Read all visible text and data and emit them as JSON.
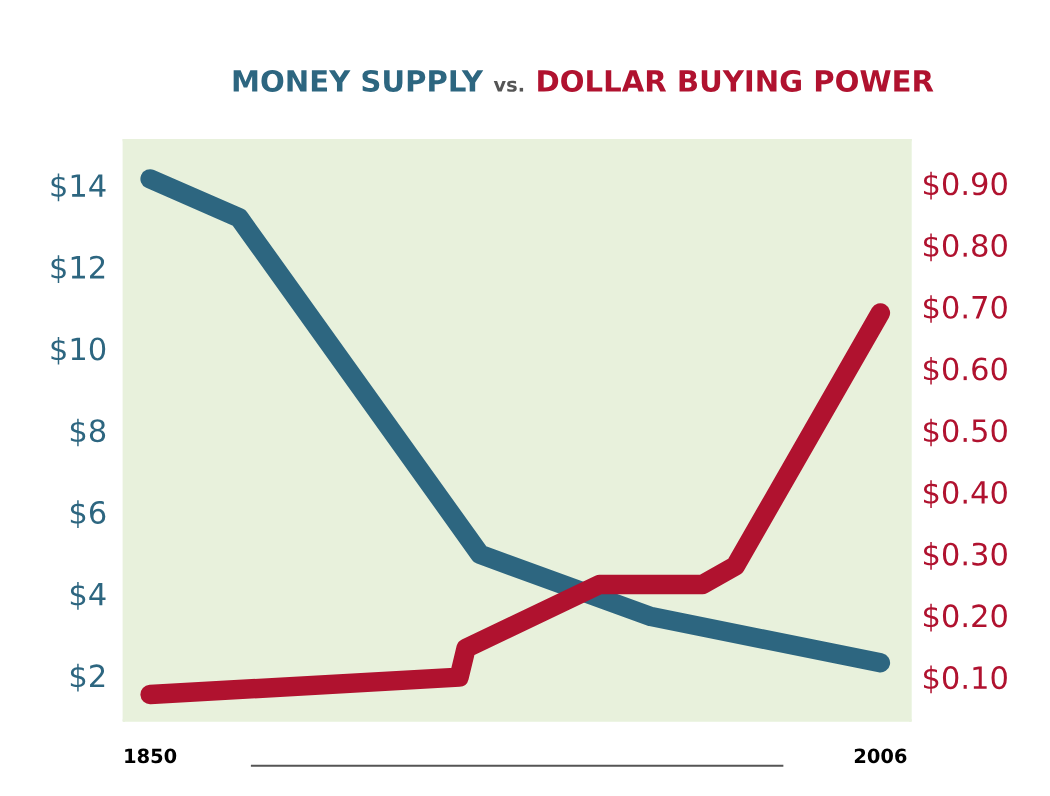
{
  "chart_data": {
    "type": "line",
    "title": "vs.",
    "series": [
      {
        "name": "MONEY SUPPLY",
        "color": "#2d6680",
        "axis": "y",
        "x": [
          1850,
          1869,
          1920.5,
          1957,
          2006
        ],
        "values": [
          14.15,
          13.2,
          4.96,
          3.44,
          2.31
        ]
      },
      {
        "name": "DOLLAR BUYING POWER",
        "color": "#b0122f",
        "axis": "y2",
        "x": [
          1850,
          1916,
          1917.5,
          1946,
          1968,
          1975,
          2006
        ],
        "values": [
          0.072,
          0.1,
          0.147,
          0.25,
          0.25,
          0.28,
          0.69
        ]
      }
    ],
    "xlim": [
      1844.4,
      2012.4
    ],
    "xticks": [
      1850,
      2006
    ],
    "ylim": [
      0.9,
      15.1
    ],
    "yticks": [
      {
        "value": 2,
        "label": "$2"
      },
      {
        "value": 4,
        "label": "$4"
      },
      {
        "value": 6,
        "label": "$6"
      },
      {
        "value": 8,
        "label": "$8"
      },
      {
        "value": 10,
        "label": "$10"
      },
      {
        "value": 12,
        "label": "$12"
      },
      {
        "value": 14,
        "label": "$14"
      }
    ],
    "y2lim": [
      0.03,
      0.97
    ],
    "y2ticks": [
      {
        "value": 0.1,
        "label": "$0.10"
      },
      {
        "value": 0.2,
        "label": "$0.20"
      },
      {
        "value": 0.3,
        "label": "$0.30"
      },
      {
        "value": 0.4,
        "label": "$0.40"
      },
      {
        "value": 0.5,
        "label": "$0.50"
      },
      {
        "value": 0.6,
        "label": "$0.60"
      },
      {
        "value": 0.7,
        "label": "$0.70"
      },
      {
        "value": 0.8,
        "label": "$0.80"
      },
      {
        "value": 0.9,
        "label": "$0.90"
      }
    ],
    "grid": false,
    "legend": false,
    "marker": "none",
    "line_style": "solid"
  }
}
